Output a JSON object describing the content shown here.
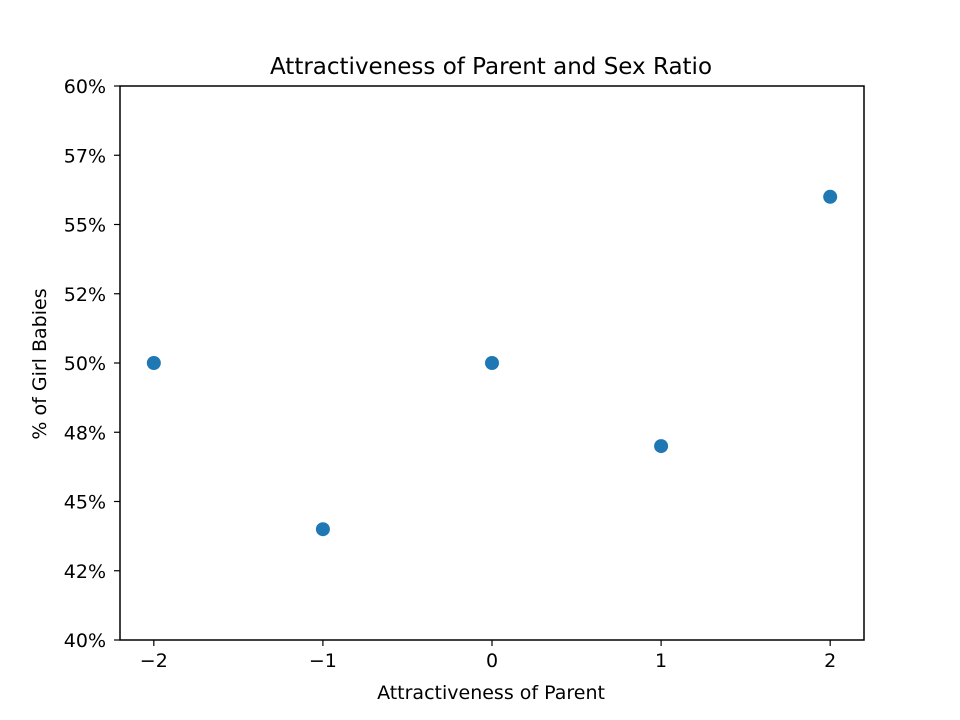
{
  "chart_data": {
    "type": "scatter",
    "title": "Attractiveness of Parent and Sex Ratio",
    "xlabel": "Attractiveness of Parent",
    "ylabel": "% of Girl Babies",
    "x": [
      -2,
      -1,
      0,
      1,
      2
    ],
    "y": [
      0.5,
      0.44,
      0.5,
      0.47,
      0.56
    ],
    "xlim": [
      -2.2,
      2.2
    ],
    "ylim": [
      0.4,
      0.6
    ],
    "xticks": [
      -2,
      -1,
      0,
      1,
      2
    ],
    "xtick_labels": [
      "−2",
      "−1",
      "0",
      "1",
      "2"
    ],
    "yticks": [
      0.4,
      0.425,
      0.45,
      0.475,
      0.5,
      0.525,
      0.55,
      0.575,
      0.6
    ],
    "ytick_labels": [
      "40%",
      "42%",
      "45%",
      "48%",
      "50%",
      "52%",
      "55%",
      "57%",
      "60%"
    ],
    "grid": false,
    "marker_color": "#1f77b4"
  }
}
